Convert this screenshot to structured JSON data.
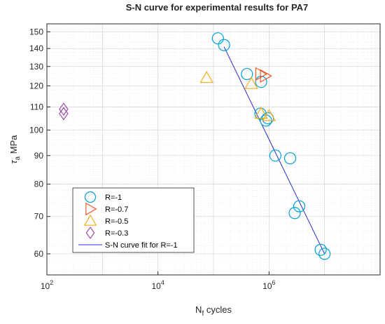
{
  "chart_data": {
    "type": "scatter",
    "title": "S-N curve for experimental results for PA7",
    "xlabel": {
      "main": "N",
      "sub": "f",
      "rest": " cycles"
    },
    "ylabel": {
      "main": "τ",
      "sub": "a",
      "rest": " MPa"
    },
    "x_scale": "log",
    "y_scale": "log",
    "xlim": [
      100,
      100000000
    ],
    "ylim": [
      55,
      155
    ],
    "x_ticks": [
      {
        "value": 100,
        "base": "10",
        "exp": "2"
      },
      {
        "value": 10000,
        "base": "10",
        "exp": "4"
      },
      {
        "value": 1000000,
        "base": "10",
        "exp": "6"
      }
    ],
    "y_ticks": [
      {
        "value": 60,
        "label": "60"
      },
      {
        "value": 70,
        "label": "70"
      },
      {
        "value": 80,
        "label": "80"
      },
      {
        "value": 90,
        "label": "90"
      },
      {
        "value": 100,
        "label": "100"
      },
      {
        "value": 110,
        "label": "110"
      },
      {
        "value": 120,
        "label": "120"
      },
      {
        "value": 130,
        "label": "130"
      },
      {
        "value": 140,
        "label": "140"
      },
      {
        "value": 150,
        "label": "150"
      }
    ],
    "grid": true,
    "minor_grid": true,
    "legend_position": "bottom-left",
    "series": [
      {
        "name": "R=-1",
        "marker": "circle",
        "color": "#00a0d8",
        "points": [
          {
            "x": 120000,
            "y": 146
          },
          {
            "x": 155000,
            "y": 142
          },
          {
            "x": 400000,
            "y": 126
          },
          {
            "x": 720000,
            "y": 122
          },
          {
            "x": 700000,
            "y": 107
          },
          {
            "x": 950000,
            "y": 105
          },
          {
            "x": 880000,
            "y": 104
          },
          {
            "x": 1300000,
            "y": 90
          },
          {
            "x": 2400000,
            "y": 89
          },
          {
            "x": 3500000,
            "y": 73
          },
          {
            "x": 2900000,
            "y": 71
          },
          {
            "x": 8500000,
            "y": 61
          },
          {
            "x": 10000000,
            "y": 60
          }
        ]
      },
      {
        "name": "R=-0.7",
        "marker": "triangle-right",
        "color": "#f05a28",
        "points": [
          {
            "x": 700000,
            "y": 126
          },
          {
            "x": 850000,
            "y": 125
          }
        ]
      },
      {
        "name": "R=-0.5",
        "marker": "triangle-up",
        "color": "#f3ae1d",
        "points": [
          {
            "x": 75000,
            "y": 124
          },
          {
            "x": 480000,
            "y": 121
          },
          {
            "x": 720000,
            "y": 107
          },
          {
            "x": 1000000,
            "y": 106
          }
        ]
      },
      {
        "name": "R=-0.3",
        "marker": "diamond",
        "color": "#9b4fa6",
        "points": [
          {
            "x": 200,
            "y": 109
          },
          {
            "x": 200,
            "y": 107
          }
        ]
      },
      {
        "name": "S-N curve fit for R=-1",
        "marker": "line",
        "color": "#2a2ac8",
        "points": [
          {
            "x": 155000,
            "y": 141
          },
          {
            "x": 10000000,
            "y": 60
          }
        ]
      }
    ]
  }
}
